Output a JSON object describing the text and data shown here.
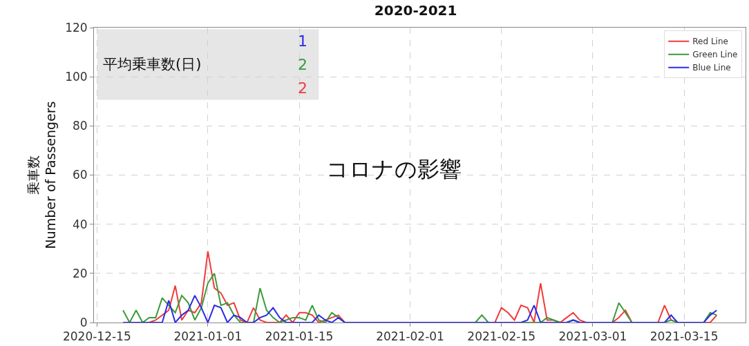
{
  "chart_data": {
    "type": "line",
    "title": "2020-2021",
    "ylabel": "乗車数\nNumber of Passengers",
    "annotations": [
      "平均乗車数(日)",
      "1",
      "2",
      "2",
      "コロナの影響"
    ],
    "x": [
      "2020-12-19",
      "2020-12-20",
      "2020-12-21",
      "2020-12-22",
      "2020-12-23",
      "2020-12-24",
      "2020-12-25",
      "2020-12-26",
      "2020-12-27",
      "2020-12-28",
      "2020-12-29",
      "2020-12-30",
      "2020-12-31",
      "2021-01-01",
      "2021-01-02",
      "2021-01-03",
      "2021-01-04",
      "2021-01-05",
      "2021-01-06",
      "2021-01-07",
      "2021-01-08",
      "2021-01-09",
      "2021-01-10",
      "2021-01-11",
      "2021-01-12",
      "2021-01-13",
      "2021-01-14",
      "2021-01-15",
      "2021-01-16",
      "2021-01-17",
      "2021-01-18",
      "2021-01-19",
      "2021-01-20",
      "2021-01-21",
      "2021-01-22",
      "2021-01-23",
      "2021-01-24",
      "2021-01-25",
      "2021-01-26",
      "2021-01-27",
      "2021-01-28",
      "2021-01-29",
      "2021-01-30",
      "2021-01-31",
      "2021-02-01",
      "2021-02-02",
      "2021-02-03",
      "2021-02-04",
      "2021-02-05",
      "2021-02-06",
      "2021-02-07",
      "2021-02-08",
      "2021-02-09",
      "2021-02-10",
      "2021-02-11",
      "2021-02-12",
      "2021-02-13",
      "2021-02-14",
      "2021-02-15",
      "2021-02-16",
      "2021-02-17",
      "2021-02-18",
      "2021-02-19",
      "2021-02-20",
      "2021-02-21",
      "2021-02-22",
      "2021-02-23",
      "2021-02-24",
      "2021-02-25",
      "2021-02-26",
      "2021-02-27",
      "2021-02-28",
      "2021-03-01",
      "2021-03-02",
      "2021-03-03",
      "2021-03-04",
      "2021-03-05",
      "2021-03-06",
      "2021-03-07",
      "2021-03-08",
      "2021-03-09",
      "2021-03-10",
      "2021-03-11",
      "2021-03-12",
      "2021-03-13",
      "2021-03-14",
      "2021-03-15",
      "2021-03-16",
      "2021-03-17",
      "2021-03-18",
      "2021-03-19",
      "2021-03-20"
    ],
    "series": [
      {
        "name": "Red Line",
        "color": "#f03a3a",
        "values": [
          null,
          null,
          null,
          0,
          0,
          1,
          3,
          5,
          15,
          1,
          5,
          4,
          8,
          29,
          14,
          12,
          7,
          8,
          1,
          0,
          6,
          1,
          0,
          0,
          0,
          3,
          0,
          4,
          4,
          3,
          0,
          1,
          2,
          3,
          0,
          0,
          0,
          0,
          0,
          0,
          0,
          0,
          0,
          0,
          0,
          0,
          0,
          0,
          0,
          0,
          0,
          0,
          0,
          0,
          0,
          0,
          0,
          0,
          6,
          4,
          1,
          7,
          6,
          0,
          16,
          1,
          1,
          0,
          2,
          4,
          1,
          0,
          0,
          0,
          0,
          0,
          2,
          5,
          0,
          0,
          0,
          0,
          0,
          7,
          1,
          0,
          0,
          0,
          0,
          0,
          0,
          3
        ]
      },
      {
        "name": "Green Line",
        "color": "#3a9a3a",
        "values": [
          5,
          0,
          5,
          0,
          2,
          2,
          10,
          7,
          4,
          11,
          8,
          1,
          6,
          16,
          20,
          7,
          8,
          3,
          0,
          0,
          0,
          14,
          5,
          2,
          0,
          1,
          2,
          2,
          1,
          7,
          1,
          0,
          4,
          2,
          0,
          0,
          0,
          0,
          0,
          0,
          0,
          0,
          0,
          0,
          0,
          0,
          0,
          0,
          0,
          0,
          0,
          0,
          0,
          0,
          0,
          3,
          0,
          0,
          0,
          0,
          0,
          0,
          0,
          0,
          0,
          2,
          1,
          0,
          0,
          1,
          0,
          0,
          0,
          0,
          0,
          0,
          8,
          4,
          0,
          0,
          0,
          0,
          0,
          0,
          1,
          0,
          0,
          0,
          0,
          0,
          4,
          3
        ]
      },
      {
        "name": "Blue Line",
        "color": "#2a2ae6",
        "values": [
          0,
          0,
          0,
          0,
          0,
          0,
          0,
          9,
          0,
          3,
          5,
          11,
          6,
          0,
          7,
          6,
          0,
          3,
          2,
          0,
          0,
          2,
          3,
          6,
          2,
          0,
          0,
          0,
          0,
          0,
          3,
          1,
          0,
          2,
          0,
          0,
          0,
          0,
          0,
          0,
          0,
          0,
          0,
          0,
          0,
          0,
          0,
          0,
          0,
          0,
          0,
          0,
          0,
          0,
          0,
          0,
          0,
          0,
          0,
          0,
          0,
          0,
          1,
          7,
          0,
          0,
          0,
          0,
          0,
          1,
          0,
          0,
          0,
          0,
          0,
          0,
          0,
          0,
          0,
          0,
          0,
          0,
          0,
          0,
          3,
          0,
          0,
          0,
          0,
          0,
          3,
          5
        ]
      }
    ],
    "xlim": [
      "2020-12-14T13:00",
      "2021-03-24T10:00"
    ],
    "xticks": [
      "2020-12-15",
      "2021-01-01",
      "2021-01-15",
      "2021-02-01",
      "2021-02-15",
      "2021-03-01",
      "2021-03-15"
    ],
    "ylim": [
      0,
      120
    ],
    "yticks": [
      0,
      20,
      40,
      60,
      80,
      100,
      120
    ],
    "grid": true,
    "legend": "top right",
    "line_style": "solid",
    "marker": "none"
  }
}
